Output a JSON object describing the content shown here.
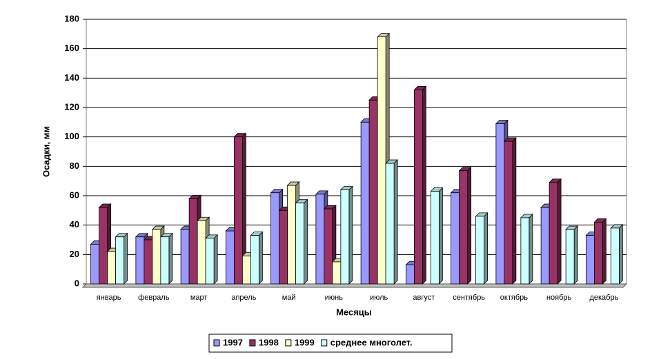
{
  "chart_data": {
    "type": "bar",
    "x_label": "Месяцы",
    "y_label": "Осадки, мм",
    "categories": [
      "январь",
      "февраль",
      "март",
      "апрель",
      "май",
      "июнь",
      "июль",
      "август",
      "сентябрь",
      "октябрь",
      "ноябрь",
      "декабрь"
    ],
    "series": [
      {
        "name": "1997",
        "color": "#9999ff",
        "values": [
          27,
          32,
          37,
          36,
          62,
          61,
          110,
          13,
          62,
          109,
          52,
          33
        ]
      },
      {
        "name": "1998",
        "color": "#993366",
        "values": [
          52,
          30,
          58,
          100,
          50,
          51,
          125,
          132,
          77,
          97,
          69,
          42
        ]
      },
      {
        "name": "1999",
        "color": "#ffffcc",
        "values": [
          22,
          37,
          43,
          19,
          67,
          15,
          168,
          null,
          null,
          null,
          null,
          null
        ]
      },
      {
        "name": "среднее многолет.",
        "color": "#ccffff",
        "values": [
          32,
          32,
          31,
          33,
          55,
          64,
          82,
          63,
          46,
          45,
          37,
          38
        ]
      }
    ],
    "ylim": [
      0,
      180
    ],
    "yticks": [
      0,
      20,
      40,
      60,
      80,
      100,
      120,
      140,
      160,
      180
    ],
    "grid": true,
    "legend": "bottom"
  }
}
